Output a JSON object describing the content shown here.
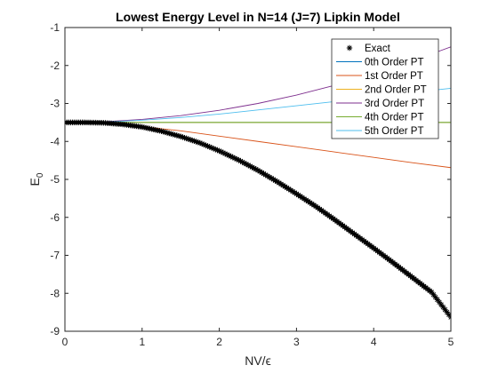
{
  "chart_data": {
    "type": "line",
    "title": "Lowest Energy Level in N=14 (J=7) Lipkin Model",
    "xlabel": "NV/ϵ",
    "ylabel_main": "E",
    "ylabel_sub": "0",
    "xlim": [
      0,
      5
    ],
    "ylim": [
      -9,
      -1
    ],
    "xticks": [
      "0",
      "1",
      "2",
      "3",
      "4",
      "5"
    ],
    "yticks": [
      "-9",
      "-8",
      "-7",
      "-6",
      "-5",
      "-4",
      "-3",
      "-2",
      "-1"
    ],
    "grid": false,
    "legend_position": "top-right",
    "series": [
      {
        "name": "Exact",
        "marker": "asterisk",
        "color": "#000000",
        "x": [
          0,
          0.25,
          0.5,
          0.75,
          1.0,
          1.25,
          1.5,
          1.75,
          2.0,
          2.25,
          2.5,
          2.75,
          3.0,
          3.25,
          3.5,
          3.75,
          4.0,
          4.25,
          4.5,
          4.75,
          5.0
        ],
        "y": [
          -3.5,
          -3.5,
          -3.51,
          -3.55,
          -3.62,
          -3.73,
          -3.87,
          -4.04,
          -4.25,
          -4.49,
          -4.76,
          -5.06,
          -5.38,
          -5.71,
          -6.07,
          -6.44,
          -6.81,
          -7.19,
          -7.58,
          -7.97,
          -8.63
        ]
      },
      {
        "name": "0th Order PT",
        "color": "#0072BD",
        "x": [
          0,
          5
        ],
        "y": [
          -3.5,
          -3.5
        ]
      },
      {
        "name": "1st Order PT",
        "color": "#D95319",
        "x": [
          0,
          0.5,
          1.0,
          1.5,
          2.0,
          2.5,
          3.0,
          3.5,
          4.0,
          4.5,
          5.0
        ],
        "y": [
          -3.5,
          -3.53,
          -3.61,
          -3.72,
          -3.86,
          -4.0,
          -4.14,
          -4.28,
          -4.42,
          -4.56,
          -4.69
        ]
      },
      {
        "name": "2nd Order PT",
        "color": "#EDB120",
        "x": [
          0,
          5
        ],
        "y": [
          -3.5,
          -3.5
        ]
      },
      {
        "name": "3rd Order PT",
        "color": "#7E2F8E",
        "x": [
          0,
          0.5,
          1.0,
          1.5,
          2.0,
          2.5,
          3.0,
          3.5,
          4.0,
          4.5,
          5.0
        ],
        "y": [
          -3.5,
          -3.48,
          -3.42,
          -3.32,
          -3.18,
          -3.0,
          -2.78,
          -2.52,
          -2.22,
          -1.88,
          -1.51
        ]
      },
      {
        "name": "4th Order PT",
        "color": "#77AC30",
        "x": [
          0,
          5
        ],
        "y": [
          -3.5,
          -3.5
        ]
      },
      {
        "name": "5th Order PT",
        "color": "#4DBEEE",
        "x": [
          0,
          0.5,
          1.0,
          1.5,
          2.0,
          2.5,
          3.0,
          3.5,
          4.0,
          4.5,
          5.0
        ],
        "y": [
          -3.5,
          -3.49,
          -3.44,
          -3.37,
          -3.28,
          -3.17,
          -3.06,
          -2.95,
          -2.83,
          -2.71,
          -2.6
        ]
      }
    ]
  }
}
